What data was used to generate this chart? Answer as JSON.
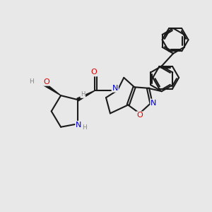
{
  "bg_color": "#e8e8e8",
  "bond_color": "#1a1a1a",
  "bond_width": 1.5,
  "atom_colors": {
    "O": "#dd0000",
    "N": "#0000cc",
    "H": "#888888",
    "C": "#1a1a1a"
  },
  "figsize": [
    3.0,
    3.0
  ],
  "dpi": 100
}
